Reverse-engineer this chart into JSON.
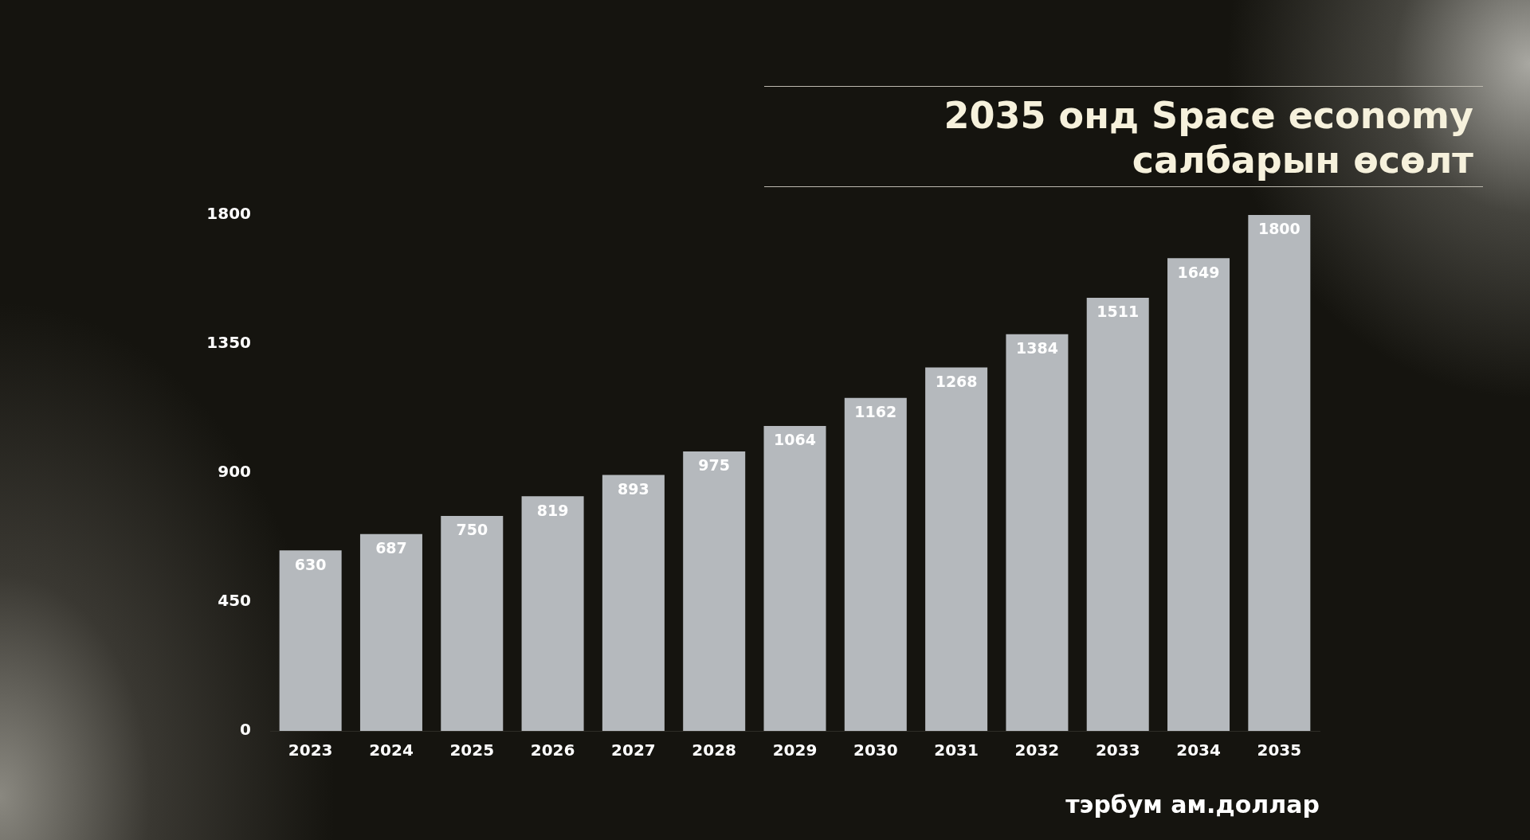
{
  "chart_data": {
    "type": "bar",
    "title": "2035 онд Space economy салбарын өсөлт",
    "xlabel": "тэрбум ам.доллар",
    "categories": [
      "2023",
      "2024",
      "2025",
      "2026",
      "2027",
      "2028",
      "2029",
      "2030",
      "2031",
      "2032",
      "2033",
      "2034",
      "2035"
    ],
    "values": [
      630,
      687,
      750,
      819,
      893,
      975,
      1064,
      1162,
      1268,
      1384,
      1511,
      1649,
      1800
    ],
    "color": "#b5b9bd",
    "ylim": [
      0,
      1800
    ],
    "yticks": [
      0,
      450,
      900,
      1350,
      1800
    ],
    "data_labels": true,
    "legend": false
  }
}
